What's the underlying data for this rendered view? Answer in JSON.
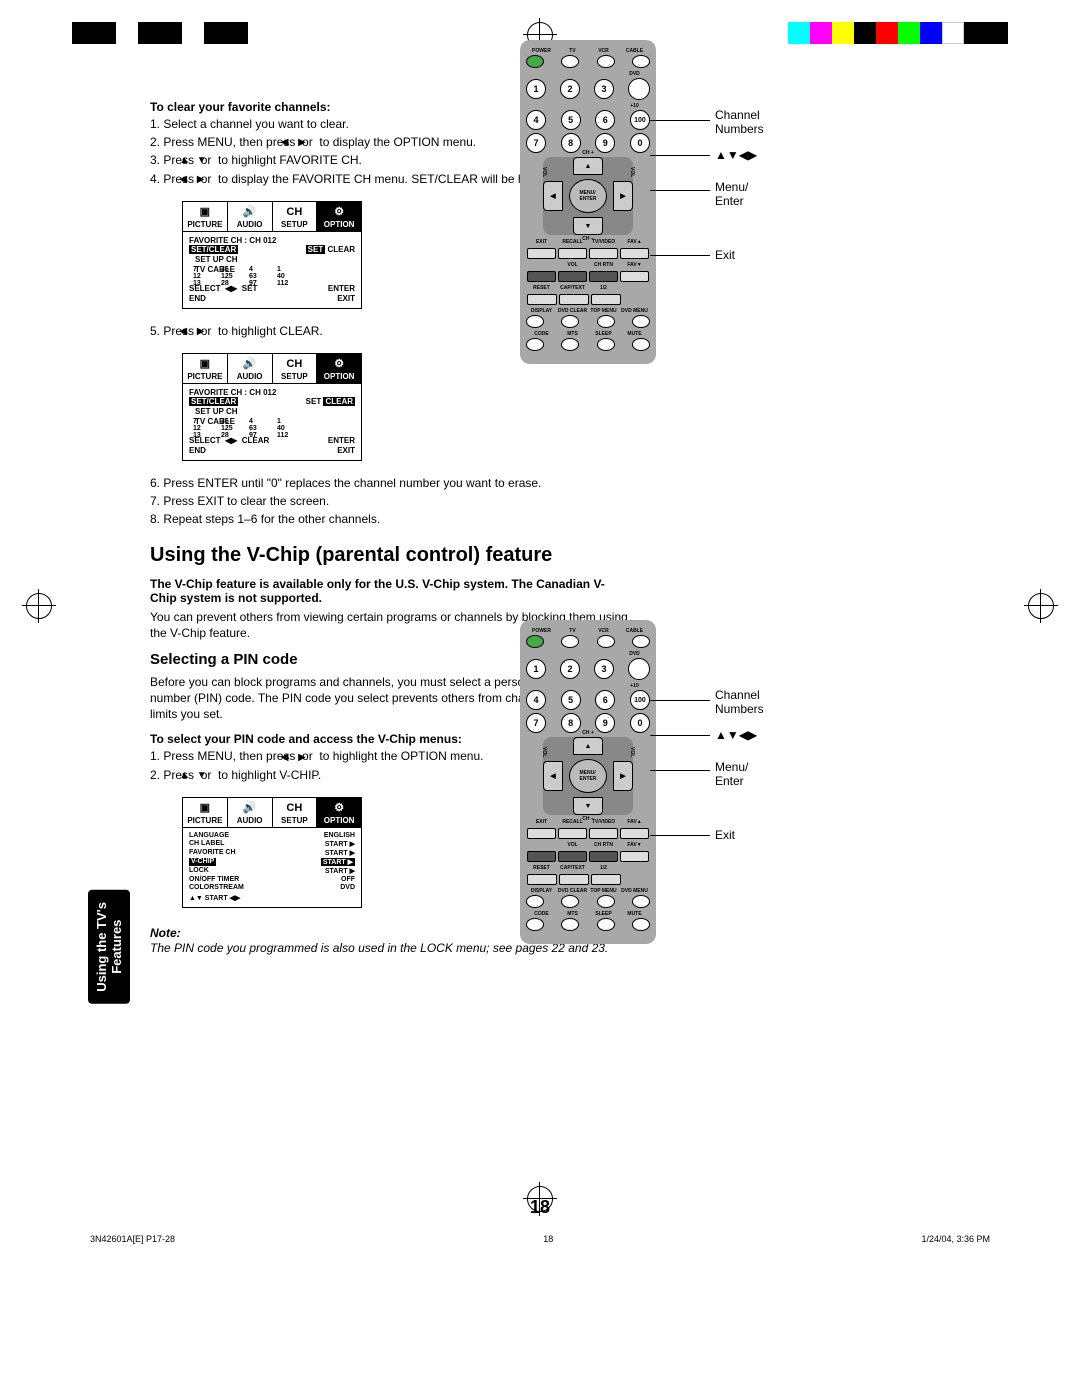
{
  "color_swatches": [
    "#00ffff",
    "#ff00ff",
    "#ffff00",
    "#000000",
    "#ff0000",
    "#00ff00",
    "#0000ff",
    "#ffffff",
    "#000000",
    "#000000"
  ],
  "color_swatches_left": [
    "#000000",
    "#000000",
    "#000000",
    "#000000",
    "#000000",
    "#000000",
    "#000000",
    "#000000"
  ],
  "side_tab": "Using the TV's\nFeatures",
  "clear": {
    "heading": "To clear your favorite channels:",
    "s1": "1. Select a channel you want to clear.",
    "s2a": "2. Press MENU, then press ",
    "s2b": " or ",
    "s2c": " to display the OPTION menu.",
    "s3a": "3. Press ",
    "s3b": " or ",
    "s3c": " to highlight FAVORITE CH.",
    "s4a": "4. Press ",
    "s4b": " or ",
    "s4c": " to display the FAVORITE CH menu. SET/CLEAR will be highlighted.",
    "s5a": "5. Press ",
    "s5b": " or ",
    "s5c": " to highlight CLEAR.",
    "s6": "6. Press ENTER until \"0\" replaces the channel number you want to erase.",
    "s7": "7. Press EXIT to clear the screen.",
    "s8": "8. Repeat steps 1–6 for the other channels."
  },
  "vchip": {
    "title": "Using the V-Chip (parental control) feature",
    "bold": "The V-Chip feature is available only for the U.S. V-Chip system. The Canadian V-Chip system is not supported.",
    "plain": "You can prevent others from viewing certain programs or channels by blocking them using the V-Chip feature.",
    "sub": "Selecting a PIN code",
    "intro": "Before you can block programs and channels, you must select a personal identification number (PIN) code. The PIN code you select prevents others from changing the rating limits you set.",
    "sel_hdr": "To select your PIN code and access the V-Chip menus:",
    "p1a": "1. Press MENU, then press ",
    "p1b": " or ",
    "p1c": " to highlight the OPTION menu.",
    "p2a": "2. Press ",
    "p2b": " or ",
    "p2c": " to highlight V-CHIP."
  },
  "note": {
    "hdr": "Note:",
    "body": "The PIN code you programmed is also used in the LOCK menu; see pages 22 and 23."
  },
  "osd": {
    "tabs": [
      "PICTURE",
      "AUDIO",
      "SETUP",
      "OPTION"
    ],
    "fav_title": "FAVORITE CH : CH 012",
    "setclear": "SET/CLEAR",
    "set": "SET",
    "clear": "CLEAR",
    "setup_ch": "SET UP CH",
    "tv_cable": "TV CABLE",
    "select": "SELECT",
    "end": "END",
    "exit": "EXIT",
    "enter": "ENTER",
    "ch_grid": [
      "7",
      "36",
      "4",
      "1",
      "12",
      "125",
      "63",
      "40",
      "13",
      "28",
      "97",
      "112"
    ],
    "menu3": {
      "LANGUAGE": "ENGLISH",
      "CH LABEL": "START ▶",
      "FAVORITE CH": "START ▶",
      "V-CHIP": "START ▶",
      "LOCK": "START ▶",
      "ON/OFF TIMER": "OFF",
      "COLORSTREAM": "DVD",
      "SELECT": "▲▼   START   ◀▶"
    }
  },
  "remote": {
    "power": "POWER",
    "tv": "TV",
    "vcr": "VCR",
    "cable": "CABLE",
    "dvd": "DVD",
    "plus10": "+10",
    "nums": [
      "1",
      "2",
      "3",
      "4",
      "5",
      "6",
      "7",
      "8",
      "9",
      "0",
      "100"
    ],
    "chp": "CH +",
    "chm": "CH –",
    "vol": "VOL",
    "menu": "MENU/\nENTER",
    "row1": [
      "EXIT",
      "RECALL",
      "TV/VIDEO",
      "FAV▲"
    ],
    "row2": [
      "",
      "VOL",
      "CH RTN",
      "FAV▼"
    ],
    "row3": [
      "RESET",
      "CAP/TEXT",
      "1/2",
      ""
    ],
    "row4": [
      "DISPLAY",
      "DVD CLEAR",
      "TOP MENU",
      "DVD MENU"
    ],
    "row5": [
      "CODE",
      "MTS",
      "SLEEP",
      "MUTE"
    ]
  },
  "callouts": {
    "ch_num": "Channel\nNumbers",
    "arrows": "▲▼◀▶",
    "menu": "Menu/\nEnter",
    "exit": "Exit"
  },
  "page_num": "18",
  "footer": {
    "left": "3N42601A[E] P17-28",
    "mid": "18",
    "right": "1/24/04, 3:36 PM"
  }
}
